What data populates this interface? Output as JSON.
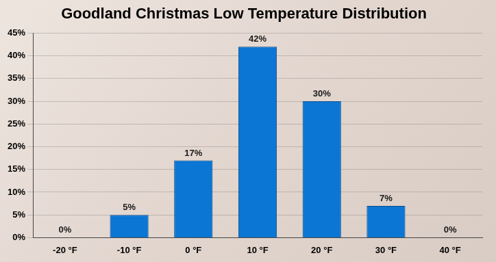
{
  "chart_data": {
    "type": "bar",
    "title": "Goodland Christmas Low Temperature Distribution",
    "categories": [
      "-20 °F",
      "-10 °F",
      "0 °F",
      "10 °F",
      "20 °F",
      "30 °F",
      "40 °F"
    ],
    "values": [
      0,
      5,
      17,
      42,
      30,
      7,
      0
    ],
    "value_labels": [
      "0%",
      "5%",
      "17%",
      "42%",
      "30%",
      "7%",
      "0%"
    ],
    "color": "#0b76d3",
    "ylim": [
      0,
      45
    ],
    "yticks": [
      {
        "value": 0,
        "label": "0%"
      },
      {
        "value": 5,
        "label": "5%"
      },
      {
        "value": 10,
        "label": "10%"
      },
      {
        "value": 15,
        "label": "15%"
      },
      {
        "value": 20,
        "label": "20%"
      },
      {
        "value": 25,
        "label": "25%"
      },
      {
        "value": 30,
        "label": "30%"
      },
      {
        "value": 35,
        "label": "35%"
      },
      {
        "value": 40,
        "label": "40%"
      },
      {
        "value": 45,
        "label": "45%"
      }
    ],
    "grid": true,
    "data_labels": true
  }
}
